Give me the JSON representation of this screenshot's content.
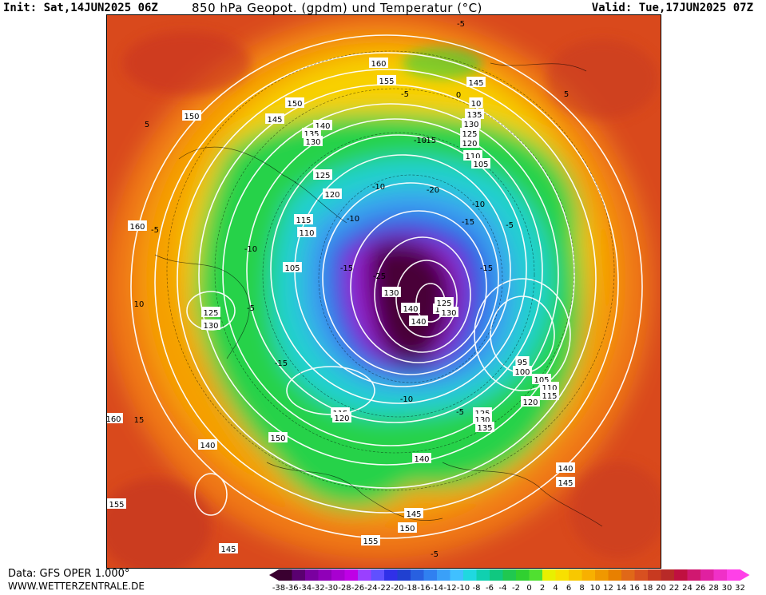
{
  "header": {
    "init": "Init: Sat,14JUN2025 06Z",
    "title": "850 hPa Geopot. (gpdm) und Temperatur (°C)",
    "valid": "Valid: Tue,17JUN2025 07Z"
  },
  "footer": {
    "data_source": "Data: GFS OPER 1.000°",
    "website": "WWW.WETTERZENTRALE.DE"
  },
  "colors": {
    "deep_cold": "#4a0038",
    "purple": "#9b1fd0",
    "blue": "#2a4be0",
    "light_blue": "#3cb4f0",
    "cyan": "#20d0d0",
    "green": "#28d24a",
    "yellow": "#f5e400",
    "orange": "#f5a000",
    "red": "#d94a1a",
    "contour": "#ffffff"
  },
  "legend": {
    "ticks": [
      "-38",
      "-36",
      "-34",
      "-32",
      "-30",
      "-28",
      "-26",
      "-24",
      "-22",
      "-20",
      "-18",
      "-16",
      "-14",
      "-12",
      "-10",
      "-8",
      "-6",
      "-4",
      "-2",
      "0",
      "2",
      "4",
      "6",
      "8",
      "10",
      "12",
      "14",
      "16",
      "18",
      "20",
      "22",
      "24",
      "26",
      "28",
      "30",
      "32"
    ],
    "colors": [
      "#3a0030",
      "#5a0070",
      "#7a00a0",
      "#9000b8",
      "#a800d0",
      "#bf00e6",
      "#9a40ff",
      "#6050ff",
      "#3030e8",
      "#2040d0",
      "#2860e0",
      "#3080f0",
      "#3aa0f8",
      "#40c0ff",
      "#20d8e0",
      "#10d0b0",
      "#10c880",
      "#20c850",
      "#30d030",
      "#50e030",
      "#e8f000",
      "#f8e000",
      "#f8c800",
      "#f8b000",
      "#f09800",
      "#e88000",
      "#e06818",
      "#d85020",
      "#c83a20",
      "#b82a28",
      "#c01040",
      "#d01870",
      "#e020a0",
      "#f030c8",
      "#ff40e8"
    ]
  },
  "map": {
    "labels": {
      "gph": [
        "160",
        "155",
        "150",
        "145",
        "10",
        "135",
        "130",
        "125",
        "120",
        "110",
        "105",
        "150",
        "145",
        "140",
        "135",
        "130",
        "125",
        "120",
        "115",
        "110",
        "105",
        "125",
        "130",
        "160",
        "160",
        "140",
        "155",
        "145",
        "150",
        "155",
        "145",
        "150",
        "140",
        "140",
        "145",
        "95",
        "100",
        "105",
        "110",
        "115",
        "120",
        "115",
        "120",
        "125",
        "130",
        "135",
        "130",
        "140",
        "140",
        "130",
        "130",
        "125"
      ],
      "temp": [
        "-5",
        "-5",
        "-10",
        "-15",
        "-20",
        "-15",
        "-25",
        "-10",
        "-10",
        "-10",
        "-5",
        "-15",
        "-15",
        "-10",
        "-5",
        "5",
        "10",
        "-5",
        "-5",
        "-10",
        "-15",
        "15",
        "5",
        "0",
        "-5"
      ]
    }
  }
}
